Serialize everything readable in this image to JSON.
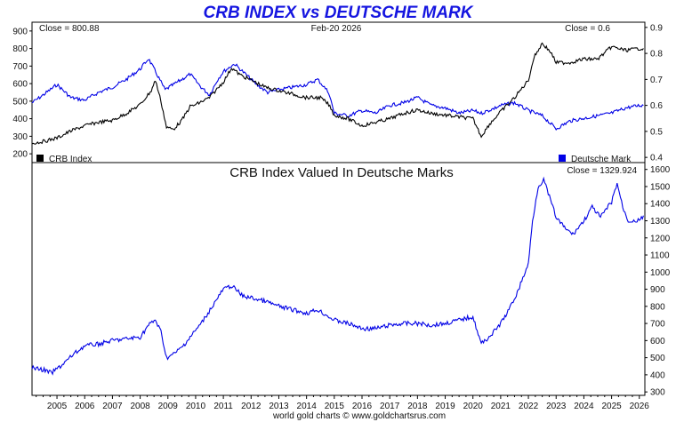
{
  "title": "CRB INDEX vs DEUTSCHE MARK",
  "date_label": "Feb-20  2026",
  "footer": "world gold charts © www.goldchartsrus.com",
  "colors": {
    "crb": "#000000",
    "dm": "#0000e6",
    "lower": "#0000e6",
    "title": "#1515e0"
  },
  "chart_data": [
    {
      "type": "line",
      "title": "CRB INDEX vs DEUTSCHE MARK",
      "close_left": "Close = 800.88",
      "close_right": "Close = 0.6",
      "x_ticks": [
        "2005",
        "2006",
        "2007",
        "2008",
        "2009",
        "2010",
        "2011",
        "2012",
        "2013",
        "2014",
        "2015",
        "2016",
        "2017",
        "2018",
        "2019",
        "2020",
        "2021",
        "2022",
        "2023",
        "2024",
        "2025",
        "2026"
      ],
      "x_range": [
        2004.1,
        2026.2
      ],
      "left_axis": {
        "ticks": [
          "200",
          "300",
          "400",
          "500",
          "600",
          "700",
          "800",
          "900"
        ],
        "range": [
          150,
          950
        ]
      },
      "right_axis": {
        "ticks": [
          "0.4",
          "0.5",
          "0.6",
          "0.7",
          "0.8",
          "0.9"
        ],
        "range": [
          0.38,
          0.92
        ]
      },
      "series": [
        {
          "name": "CRB Index",
          "axis": "left",
          "x": [
            2004.1,
            2004.5,
            2005.0,
            2005.5,
            2006.0,
            2006.5,
            2007.0,
            2007.5,
            2008.0,
            2008.4,
            2008.55,
            2008.75,
            2008.95,
            2009.2,
            2009.5,
            2009.8,
            2010.0,
            2010.5,
            2011.0,
            2011.3,
            2011.6,
            2012.0,
            2012.5,
            2013.0,
            2013.5,
            2014.0,
            2014.5,
            2014.8,
            2015.0,
            2015.5,
            2016.0,
            2016.5,
            2017.0,
            2017.5,
            2018.0,
            2018.5,
            2019.0,
            2019.5,
            2020.0,
            2020.3,
            2020.6,
            2021.0,
            2021.5,
            2022.0,
            2022.2,
            2022.5,
            2022.8,
            2023.0,
            2023.5,
            2024.0,
            2024.5,
            2025.0,
            2025.5,
            2026.0,
            2026.15
          ],
          "y": [
            260,
            270,
            290,
            330,
            360,
            380,
            390,
            430,
            480,
            560,
            620,
            500,
            350,
            340,
            390,
            470,
            480,
            520,
            610,
            690,
            650,
            620,
            580,
            560,
            540,
            520,
            520,
            480,
            420,
            400,
            360,
            380,
            400,
            430,
            450,
            430,
            420,
            410,
            400,
            300,
            370,
            440,
            520,
            620,
            750,
            830,
            780,
            720,
            720,
            740,
            740,
            810,
            790,
            800,
            801
          ]
        },
        {
          "name": "Deutsche Mark",
          "axis": "right",
          "x": [
            2004.1,
            2004.5,
            2005.0,
            2005.5,
            2006.0,
            2006.5,
            2007.0,
            2007.5,
            2008.0,
            2008.3,
            2008.6,
            2008.9,
            2009.2,
            2009.5,
            2009.8,
            2010.2,
            2010.5,
            2010.8,
            2011.0,
            2011.4,
            2011.8,
            2012.2,
            2012.6,
            2013.0,
            2013.5,
            2014.0,
            2014.4,
            2014.8,
            2015.0,
            2015.5,
            2016.0,
            2016.5,
            2017.0,
            2017.5,
            2018.0,
            2018.5,
            2019.0,
            2019.5,
            2020.0,
            2020.3,
            2020.8,
            2021.0,
            2021.5,
            2022.0,
            2022.5,
            2022.8,
            2023.0,
            2023.5,
            2024.0,
            2024.5,
            2025.0,
            2025.5,
            2026.0,
            2026.15
          ],
          "y": [
            0.61,
            0.64,
            0.68,
            0.63,
            0.62,
            0.65,
            0.67,
            0.7,
            0.74,
            0.78,
            0.72,
            0.66,
            0.68,
            0.7,
            0.72,
            0.67,
            0.64,
            0.7,
            0.73,
            0.76,
            0.72,
            0.68,
            0.65,
            0.66,
            0.67,
            0.68,
            0.7,
            0.65,
            0.57,
            0.56,
            0.58,
            0.57,
            0.6,
            0.61,
            0.63,
            0.6,
            0.59,
            0.57,
            0.58,
            0.57,
            0.59,
            0.6,
            0.61,
            0.58,
            0.56,
            0.53,
            0.51,
            0.54,
            0.55,
            0.56,
            0.57,
            0.59,
            0.6,
            0.6
          ]
        }
      ]
    },
    {
      "type": "line",
      "title": "CRB Index Valued In Deutsche Marks",
      "close_right": "Close = 1329.924",
      "x_range": [
        2004.1,
        2026.2
      ],
      "right_axis": {
        "ticks": [
          "300",
          "400",
          "500",
          "600",
          "700",
          "800",
          "900",
          "1000",
          "1100",
          "1200",
          "1300",
          "1400",
          "1500",
          "1600"
        ],
        "range": [
          280,
          1640
        ]
      },
      "series": [
        {
          "axis": "right",
          "x": [
            2004.1,
            2004.5,
            2004.8,
            2005.2,
            2005.6,
            2006.0,
            2006.5,
            2007.0,
            2007.5,
            2008.0,
            2008.3,
            2008.55,
            2008.75,
            2008.95,
            2009.2,
            2009.5,
            2009.8,
            2010.2,
            2010.6,
            2011.0,
            2011.3,
            2011.7,
            2012.0,
            2012.5,
            2013.0,
            2013.5,
            2014.0,
            2014.4,
            2014.8,
            2015.0,
            2015.5,
            2016.0,
            2016.5,
            2017.0,
            2017.5,
            2018.0,
            2018.5,
            2019.0,
            2019.5,
            2020.0,
            2020.3,
            2020.7,
            2021.0,
            2021.3,
            2021.6,
            2022.0,
            2022.15,
            2022.35,
            2022.55,
            2022.8,
            2023.0,
            2023.3,
            2023.6,
            2024.0,
            2024.3,
            2024.6,
            2025.0,
            2025.2,
            2025.4,
            2025.6,
            2026.0,
            2026.15
          ],
          "y": [
            440,
            430,
            410,
            460,
            520,
            570,
            580,
            600,
            610,
            620,
            690,
            720,
            650,
            500,
            520,
            560,
            620,
            700,
            800,
            900,
            920,
            860,
            850,
            830,
            800,
            780,
            760,
            780,
            740,
            720,
            700,
            670,
            670,
            690,
            700,
            700,
            690,
            700,
            720,
            740,
            580,
            640,
            700,
            780,
            880,
            1050,
            1300,
            1500,
            1540,
            1420,
            1320,
            1260,
            1220,
            1300,
            1380,
            1320,
            1410,
            1520,
            1380,
            1300,
            1300,
            1330
          ]
        }
      ]
    }
  ]
}
